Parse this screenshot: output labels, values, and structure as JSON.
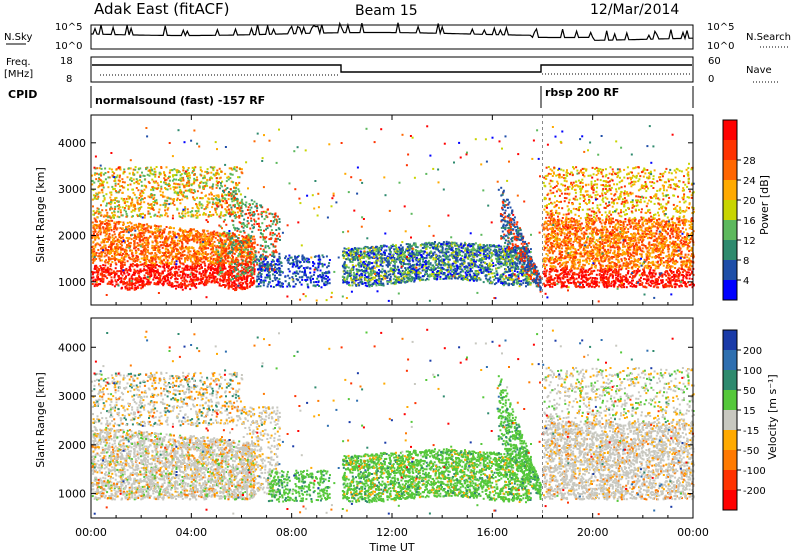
{
  "header": {
    "site": "Adak East (fitACF)",
    "beam": "Beam 15",
    "date": "12/Mar/2014"
  },
  "top_panel": {
    "left_label": "N.Sky",
    "left_ticks": [
      "10^5",
      "10^0"
    ],
    "right_ticks": [
      "10^5",
      "10^0"
    ],
    "right_label": "N.Search"
  },
  "freq_panel": {
    "left_label_1": "Freq.",
    "left_label_2": "[MHz]",
    "left_ticks": [
      "18",
      "8"
    ],
    "right_ticks": [
      "60",
      "0"
    ],
    "right_label": "Nave"
  },
  "cpid_panel": {
    "label": "CPID",
    "mode_1": "normalsound (fast) -157 RF",
    "mode_2": "rbsp 200 RF"
  },
  "chart_data": [
    {
      "type": "heatmap",
      "name": "power",
      "ylabel": "Slant Range [km]",
      "y_ticks": [
        "1000",
        "2000",
        "3000",
        "4000"
      ],
      "ylim": [
        500,
        4600
      ],
      "xlim": [
        0,
        24
      ],
      "colorbar": {
        "label": "Power [dB]",
        "ticks": [
          "4",
          "8",
          "12",
          "16",
          "20",
          "24",
          "28"
        ],
        "colors": [
          "#0000ff",
          "#1e4ea8",
          "#2e8a6e",
          "#5cb85c",
          "#c8d400",
          "#ffaa00",
          "#ff6600",
          "#ff3300",
          "#ff0000"
        ]
      }
    },
    {
      "type": "heatmap",
      "name": "velocity",
      "ylabel": "Slant Range [km]",
      "y_ticks": [
        "1000",
        "2000",
        "3000",
        "4000"
      ],
      "ylim": [
        500,
        4600
      ],
      "xlim": [
        0,
        24
      ],
      "colorbar": {
        "label": "Velocity [m s⁻¹]",
        "ticks": [
          "200",
          "100",
          "50",
          "15",
          "-15",
          "-50",
          "-100",
          "-200"
        ],
        "colors": [
          "#1a3ba8",
          "#2e6fb0",
          "#2e8a6e",
          "#55c83a",
          "#c8c8c0",
          "#ffaa00",
          "#ff7a00",
          "#ff3300",
          "#ff0000"
        ]
      }
    }
  ],
  "x_axis": {
    "ticks": [
      "00:00",
      "04:00",
      "08:00",
      "12:00",
      "16:00",
      "20:00",
      "00:00"
    ],
    "label": "Time UT"
  }
}
